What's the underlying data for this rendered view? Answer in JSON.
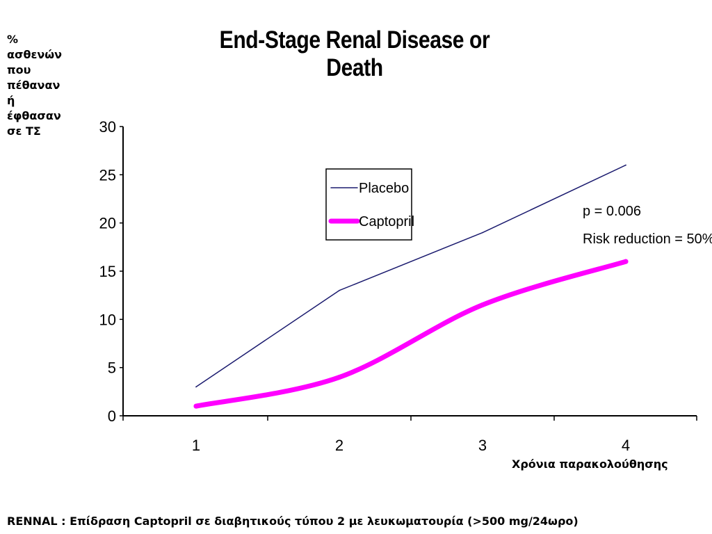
{
  "y_axis_label_lines": [
    "%",
    "ασθενών",
    "που",
    "πέθαναν",
    "ή",
    "έφθασαν",
    "σε ΤΣ"
  ],
  "x_axis_label": "Χρόνια παρακολούθησης",
  "caption": "RENNAL : Επίδραση Captopril σε διαβητικούς τύπου 2 με λευκωματουρία  (>500 mg/24ωρο)",
  "chart_data": {
    "type": "line",
    "title": "End-Stage Renal Disease or Death",
    "x": [
      1,
      2,
      3,
      4
    ],
    "x_tick_labels": [
      "1",
      "2",
      "3",
      "4"
    ],
    "y_ticks": [
      0,
      5,
      10,
      15,
      20,
      25,
      30
    ],
    "ylim": [
      0,
      30
    ],
    "series": [
      {
        "name": "Placebo",
        "values": [
          3,
          13,
          19,
          26
        ],
        "color": "#1a1a6e",
        "smooth": false
      },
      {
        "name": "Captopril",
        "values": [
          1,
          4,
          11.5,
          16
        ],
        "color": "#ff00ff",
        "smooth": true
      }
    ],
    "legend_position": "upper-center",
    "annotations": [
      "p = 0.006",
      "Risk reduction = 50%"
    ],
    "grid": false
  }
}
